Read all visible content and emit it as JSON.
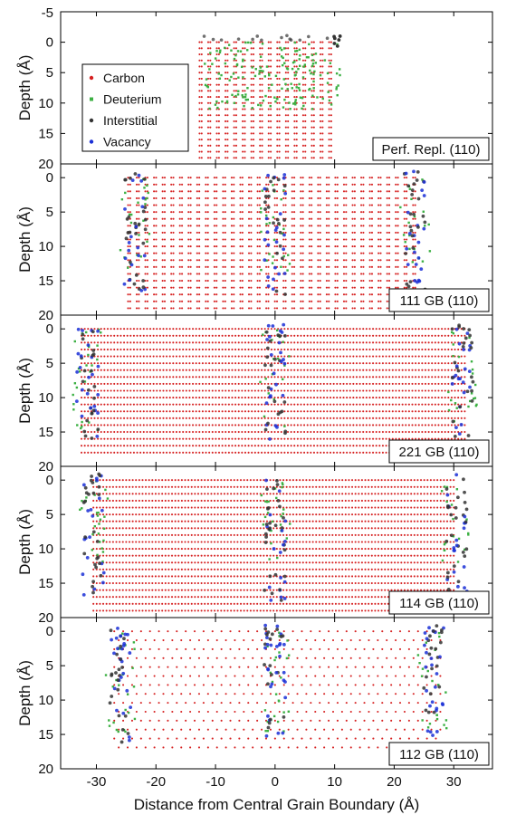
{
  "chart_data": {
    "type": "scatter",
    "xlabel": "Distance from Central Grain Boundary (Å)",
    "x_ticks": [
      -30,
      -20,
      -10,
      0,
      10,
      20,
      30
    ],
    "xlim": [
      -36,
      36.5
    ],
    "legend": {
      "placement": "top-left of first panel",
      "entries": [
        {
          "label": "Carbon",
          "color": "#d62020",
          "marker": "dot"
        },
        {
          "label": "Deuterium",
          "color": "#3cb043",
          "marker": "square"
        },
        {
          "label": "Interstitial",
          "color": "#333333",
          "marker": "dot"
        },
        {
          "label": "Vacancy",
          "color": "#1a2fd6",
          "marker": "dot"
        }
      ]
    },
    "series_colors": {
      "carbon": "#d62020",
      "deuterium": "#3cb043",
      "interstitial": "#333333",
      "vacancy": "#1a2fd6"
    },
    "panels": [
      {
        "label": "Perf. Repl. (110)",
        "ylabel": "Depth (Å)",
        "ylim": [
          -5,
          20
        ],
        "y_ticks": [
          -5,
          0,
          5,
          10,
          15,
          20
        ],
        "slab_x_range": [
          -12.5,
          10.5
        ],
        "slab_depth_range": [
          0,
          19
        ],
        "lattice": "columns",
        "boundaries_x": [
          10.5
        ],
        "deuterium_zone_x": [
          -12,
          11
        ],
        "deuterium_zone_depth": [
          0,
          11
        ]
      },
      {
        "label": "111 GB (110)",
        "ylabel": "Depth (Å)",
        "ylim": [
          -2,
          20
        ],
        "y_ticks": [
          0,
          5,
          10,
          15,
          20
        ],
        "slab_x_range": [
          -24.5,
          24.5
        ],
        "slab_depth_range": [
          0,
          19
        ],
        "lattice": "columns",
        "boundaries_x": [
          -23.5,
          0,
          23.5
        ],
        "deuterium_zone_x": [
          -24,
          25
        ],
        "deuterium_zone_depth": [
          0,
          14
        ]
      },
      {
        "label": "221 GB (110)",
        "ylabel": "Depth (Å)",
        "ylim": [
          -2,
          20
        ],
        "y_ticks": [
          0,
          5,
          10,
          15,
          20
        ],
        "slab_x_range": [
          -32.5,
          32
        ],
        "slab_depth_range": [
          0,
          18
        ],
        "lattice": "rows",
        "boundaries_x": [
          -31.5,
          0,
          31.5
        ],
        "deuterium_zone_x": [
          -32,
          32
        ],
        "deuterium_zone_depth": [
          0,
          15
        ]
      },
      {
        "label": "114 GB (110)",
        "ylabel": "Depth (Å)",
        "ylim": [
          -2,
          20
        ],
        "y_ticks": [
          0,
          5,
          10,
          15,
          20
        ],
        "slab_x_range": [
          -30.5,
          30.5
        ],
        "slab_depth_range": [
          0,
          19
        ],
        "lattice": "rows",
        "boundaries_x": [
          -30.5,
          0,
          30.5
        ],
        "deuterium_zone_x": [
          -30,
          30
        ],
        "deuterium_zone_depth": [
          0,
          12
        ]
      },
      {
        "label": "112 GB (110)",
        "ylabel": "Depth (Å)",
        "ylim": [
          -2,
          20
        ],
        "y_ticks": [
          0,
          5,
          10,
          15,
          20
        ],
        "slab_x_range": [
          -27,
          28
        ],
        "slab_depth_range": [
          0,
          18
        ],
        "lattice": "hex",
        "boundaries_x": [
          -26,
          0,
          26.5
        ],
        "deuterium_zone_x": [
          -26,
          27
        ],
        "deuterium_zone_depth": [
          0,
          15
        ]
      }
    ]
  }
}
